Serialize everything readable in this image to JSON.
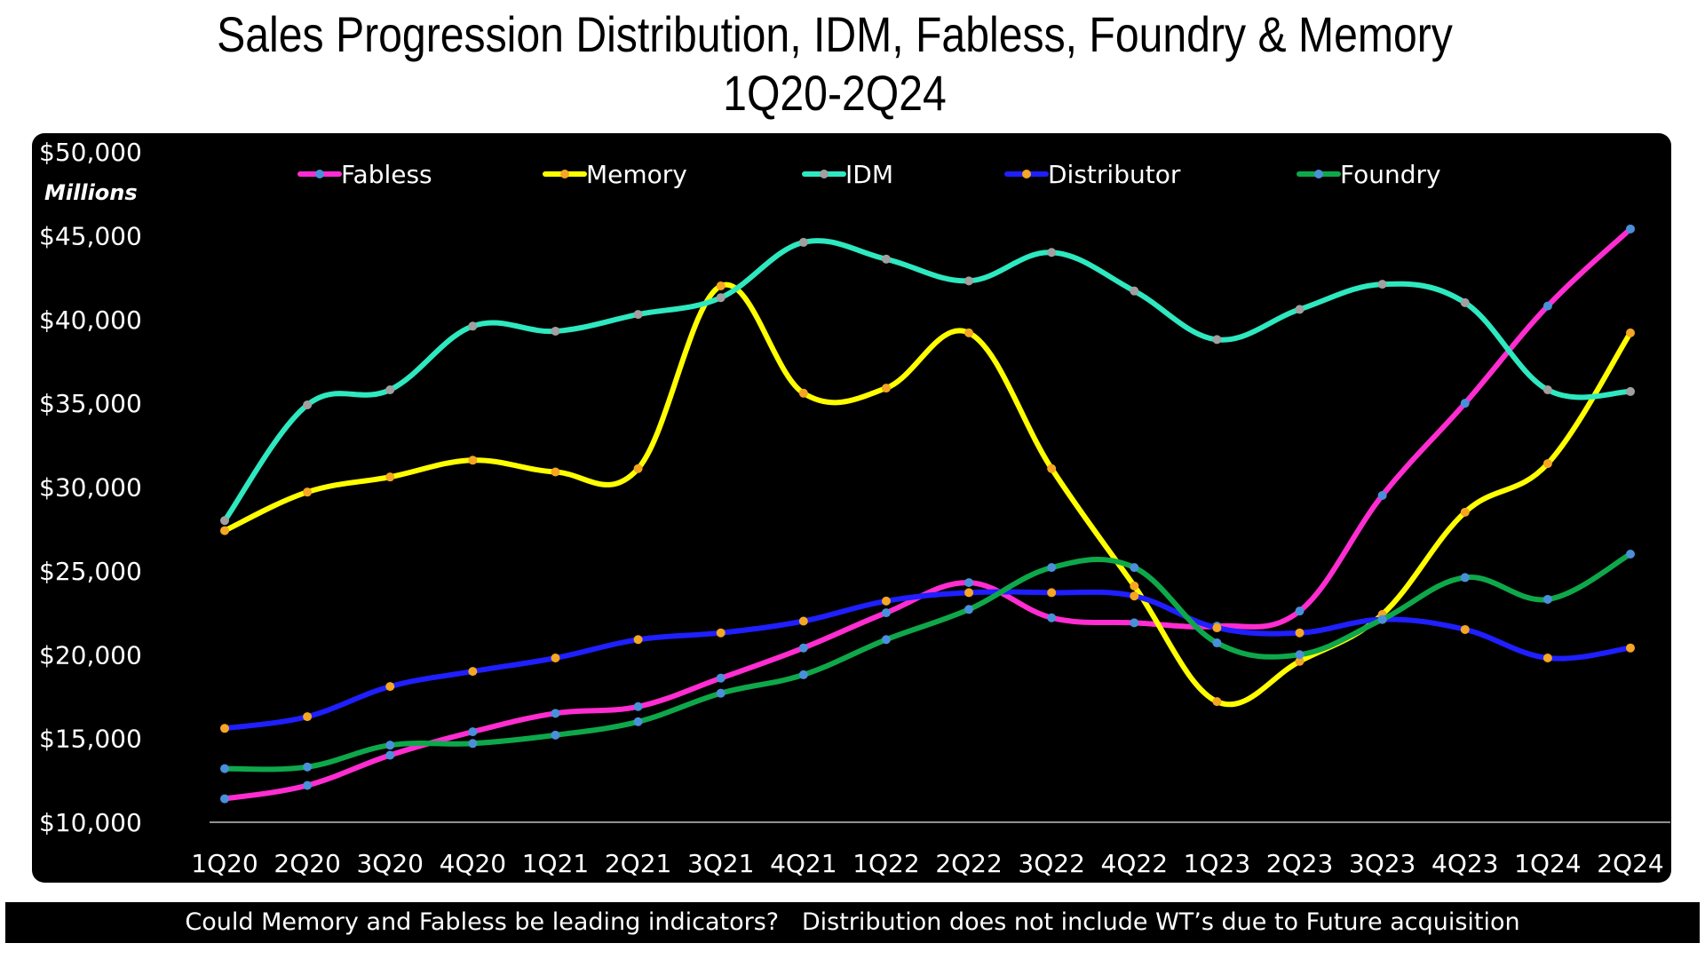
{
  "title_line1": "Sales Progression Distribution, IDM, Fabless, Foundry & Memory",
  "title_line2": "1Q20-2Q24",
  "footer": "Could Memory and Fabless be leading indicators?   Distribution does not include WT’s due to Future acquisition",
  "chart_data": {
    "type": "line",
    "title": "Sales Progression Distribution, IDM, Fabless, Foundry & Memory 1Q20-2Q24",
    "units_label": "Millions",
    "ylim": [
      10000,
      50000
    ],
    "yticks": [
      10000,
      15000,
      20000,
      25000,
      30000,
      35000,
      40000,
      45000,
      50000
    ],
    "ytick_labels": [
      "$10,000",
      "$15,000",
      "$20,000",
      "$25,000",
      "$30,000",
      "$35,000",
      "$40,000",
      "$45,000",
      "$50,000"
    ],
    "grid": false,
    "legend_position": "top",
    "categories": [
      "1Q20",
      "2Q20",
      "3Q20",
      "4Q20",
      "1Q21",
      "2Q21",
      "3Q21",
      "4Q21",
      "1Q22",
      "2Q22",
      "3Q22",
      "4Q22",
      "1Q23",
      "2Q23",
      "3Q23",
      "4Q23",
      "1Q24",
      "2Q24"
    ],
    "series": [
      {
        "name": "Fabless",
        "color": "#ff2dd1",
        "marker": "#4a90d9",
        "values": [
          11400,
          12200,
          14000,
          15400,
          16500,
          16900,
          18600,
          20400,
          22500,
          24300,
          22200,
          21900,
          21700,
          22600,
          29500,
          35000,
          40800,
          45400
        ]
      },
      {
        "name": "Memory",
        "color": "#ffff00",
        "marker": "#f5a623",
        "values": [
          27400,
          29700,
          30600,
          31600,
          30900,
          31100,
          42000,
          35600,
          35900,
          39200,
          31100,
          24100,
          17200,
          19600,
          22400,
          28500,
          31400,
          39200
        ]
      },
      {
        "name": "IDM",
        "color": "#2ee8c0",
        "marker": "#a0a0a0",
        "values": [
          28000,
          34900,
          35800,
          39600,
          39300,
          40300,
          41300,
          44600,
          43600,
          42300,
          44000,
          41700,
          38800,
          40600,
          42100,
          41000,
          35800,
          35700
        ]
      },
      {
        "name": "Distributor",
        "color": "#1f1fff",
        "marker": "#f5a623",
        "values": [
          15600,
          16300,
          18100,
          19000,
          19800,
          20900,
          21300,
          22000,
          23200,
          23700,
          23700,
          23500,
          21600,
          21300,
          22100,
          21500,
          19800,
          20400
        ]
      },
      {
        "name": "Foundry",
        "color": "#0ea84a",
        "marker": "#4a90d9",
        "values": [
          13200,
          13300,
          14600,
          14700,
          15200,
          16000,
          17700,
          18800,
          20900,
          22700,
          25200,
          25200,
          20700,
          20000,
          22100,
          24600,
          23300,
          26000
        ]
      }
    ]
  }
}
